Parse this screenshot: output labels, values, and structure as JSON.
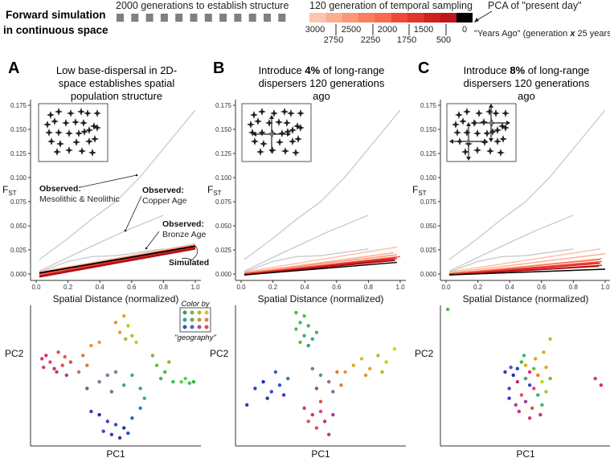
{
  "header": {
    "title_line1": "Forward simulation",
    "title_line2": "in continuous space",
    "structure_label": "2000 generations to establish structure",
    "sampling_label": "120 generation of temporal sampling",
    "pca_label": "PCA of \"present day\"",
    "years_ago_label": "\"Years Ago\" (generation ",
    "years_ago_x": "x",
    "years_ago_suffix": " 25 years)",
    "colorbar_colors": [
      "#fcc5b0",
      "#fcae91",
      "#fb9677",
      "#fb7d5e",
      "#f96a4c",
      "#ef4a36",
      "#e33529",
      "#d0211f",
      "#bd171d",
      "#000000"
    ],
    "top_ticks": [
      "3000",
      "2500",
      "2000",
      "1500",
      "0"
    ],
    "bottom_ticks": [
      "2750",
      "2250",
      "1750",
      "500"
    ]
  },
  "panels": [
    {
      "letter": "A",
      "title_pre": "Low base-dispersal in 2D-space establishes spatial population structure",
      "title_bold": "",
      "title_post": ""
    },
    {
      "letter": "B",
      "title_pre": "Introduce ",
      "title_bold": "4%",
      "title_post": " of long-range dispersers 120 generations ago"
    },
    {
      "letter": "C",
      "title_pre": "Introduce ",
      "title_bold": "8%",
      "title_post": " of long-range dispersers 120 generations ago"
    }
  ],
  "annotations": {
    "observed": "Observed:",
    "meso": "Mesolithic & Neolithic",
    "copper": "Copper Age",
    "bronze": "Bronze Age",
    "simulated": "Simulated",
    "color_by": "Color by",
    "geography": "\"geography\""
  },
  "chart_data": [
    {
      "type": "line",
      "panel": "A",
      "xlabel": "Spatial Distance (normalized)",
      "ylabel": "FST",
      "xlim": [
        0,
        1
      ],
      "ylim": [
        0,
        0.175
      ],
      "xticks": [
        "0.0",
        "0.2",
        "0.4",
        "0.6",
        "0.8",
        "1.0"
      ],
      "yticks": [
        "0.000",
        "0.025",
        "0.050",
        "0.075",
        "0.100",
        "0.125",
        "0.150",
        "0.175"
      ],
      "observed": [
        {
          "name": "Mesolithic & Neolithic",
          "x": [
            0.02,
            0.2,
            0.35,
            0.5,
            0.65,
            0.8,
            1.0
          ],
          "y": [
            0.015,
            0.037,
            0.057,
            0.075,
            0.1,
            0.13,
            0.17
          ],
          "color": "#c8c8c8"
        },
        {
          "name": "Copper Age",
          "x": [
            0.02,
            0.3,
            0.55,
            0.8
          ],
          "y": [
            0.003,
            0.025,
            0.044,
            0.061
          ],
          "color": "#c8c8c8"
        },
        {
          "name": "Bronze Age",
          "x": [
            0.02,
            0.2,
            0.35,
            0.5,
            0.8
          ],
          "y": [
            0.002,
            0.013,
            0.018,
            0.019,
            0.026
          ],
          "color": "#c8c8c8"
        }
      ],
      "simulated": [
        {
          "x": [
            0.02,
            1.0
          ],
          "y": [
            0.002,
            0.031
          ]
        },
        {
          "x": [
            0.02,
            1.0
          ],
          "y": [
            0.001,
            0.03
          ]
        },
        {
          "x": [
            0.02,
            1.0
          ],
          "y": [
            0.0,
            0.03
          ]
        },
        {
          "x": [
            0.02,
            1.0
          ],
          "y": [
            -0.001,
            0.029
          ]
        },
        {
          "x": [
            0.02,
            1.0
          ],
          "y": [
            0.0,
            0.029
          ]
        },
        {
          "x": [
            0.02,
            1.0
          ],
          "y": [
            -0.002,
            0.028
          ]
        },
        {
          "x": [
            0.02,
            1.0
          ],
          "y": [
            0.001,
            0.028
          ]
        },
        {
          "x": [
            0.02,
            1.0
          ],
          "y": [
            -0.002,
            0.027
          ]
        },
        {
          "x": [
            0.02,
            1.0
          ],
          "y": [
            -0.003,
            0.026
          ]
        },
        {
          "x": [
            0.02,
            1.0
          ],
          "y": [
            0.001,
            0.029
          ]
        }
      ]
    },
    {
      "type": "line",
      "panel": "B",
      "xlabel": "Spatial Distance (normalized)",
      "ylabel": "FST",
      "xlim": [
        0,
        1
      ],
      "ylim": [
        0,
        0.175
      ],
      "xticks": [
        "0.0",
        "0.2",
        "0.4",
        "0.6",
        "0.8",
        "1.0"
      ],
      "yticks": [
        "0.000",
        "0.025",
        "0.050",
        "0.075",
        "0.100",
        "0.125",
        "0.150",
        "0.175"
      ],
      "simulated": [
        {
          "x": [
            0.02,
            0.98
          ],
          "y": [
            0.002,
            0.028
          ]
        },
        {
          "x": [
            0.02,
            0.96
          ],
          "y": [
            0.001,
            0.022
          ]
        },
        {
          "x": [
            0.02,
            0.98
          ],
          "y": [
            0.001,
            0.02
          ]
        },
        {
          "x": [
            0.02,
            0.99
          ],
          "y": [
            0.0,
            0.018
          ]
        },
        {
          "x": [
            0.02,
            1.0
          ],
          "y": [
            0.0,
            0.018
          ]
        },
        {
          "x": [
            0.02,
            0.97
          ],
          "y": [
            -0.001,
            0.017
          ]
        },
        {
          "x": [
            0.02,
            0.98
          ],
          "y": [
            0.0,
            0.016
          ]
        },
        {
          "x": [
            0.02,
            0.96
          ],
          "y": [
            -0.001,
            0.015
          ]
        },
        {
          "x": [
            0.02,
            0.97
          ],
          "y": [
            -0.001,
            0.014
          ]
        },
        {
          "x": [
            0.02,
            0.98
          ],
          "y": [
            -0.001,
            0.012
          ]
        }
      ]
    },
    {
      "type": "line",
      "panel": "C",
      "xlabel": "Spatial Distance (normalized)",
      "ylabel": "FST",
      "xlim": [
        0,
        1
      ],
      "ylim": [
        0,
        0.175
      ],
      "xticks": [
        "0.0",
        "0.2",
        "0.4",
        "0.6",
        "0.8",
        "1.0"
      ],
      "yticks": [
        "0.000",
        "0.025",
        "0.050",
        "0.075",
        "0.100",
        "0.125",
        "0.150",
        "0.175"
      ],
      "simulated": [
        {
          "x": [
            0.02,
            0.97
          ],
          "y": [
            0.002,
            0.026
          ]
        },
        {
          "x": [
            0.02,
            1.0
          ],
          "y": [
            0.001,
            0.021
          ]
        },
        {
          "x": [
            0.02,
            0.98
          ],
          "y": [
            0.0,
            0.016
          ]
        },
        {
          "x": [
            0.02,
            0.97
          ],
          "y": [
            0.0,
            0.015
          ]
        },
        {
          "x": [
            0.02,
            0.98
          ],
          "y": [
            -0.001,
            0.013
          ]
        },
        {
          "x": [
            0.02,
            0.96
          ],
          "y": [
            0.0,
            0.012
          ]
        },
        {
          "x": [
            0.02,
            0.97
          ],
          "y": [
            -0.001,
            0.011
          ]
        },
        {
          "x": [
            0.02,
            0.98
          ],
          "y": [
            -0.001,
            0.009
          ]
        },
        {
          "x": [
            0.02,
            0.96
          ],
          "y": [
            -0.001,
            0.008
          ]
        },
        {
          "x": [
            0.02,
            1.0
          ],
          "y": [
            -0.001,
            0.005
          ]
        }
      ]
    },
    {
      "type": "scatter",
      "panel": "A",
      "xlabel": "PC1",
      "ylabel": "PC2",
      "points": [
        [
          -0.9,
          0.25,
          "#e0307a"
        ],
        [
          -0.85,
          0.3,
          "#d62d6e"
        ],
        [
          -0.8,
          0.2,
          "#e8407a"
        ],
        [
          -0.75,
          0.1,
          "#c8306a"
        ],
        [
          -0.7,
          0.35,
          "#f04060"
        ],
        [
          -0.72,
          0.05,
          "#b04080"
        ],
        [
          -0.65,
          0.15,
          "#e05050"
        ],
        [
          -0.6,
          0.0,
          "#a04090"
        ],
        [
          -0.55,
          0.2,
          "#d05a40"
        ],
        [
          -0.88,
          0.12,
          "#d03a8a"
        ],
        [
          -0.62,
          0.28,
          "#e85a4a"
        ],
        [
          -0.4,
          0.3,
          "#e87830"
        ],
        [
          -0.3,
          0.45,
          "#f09030"
        ],
        [
          -0.2,
          0.5,
          "#e8a020"
        ],
        [
          -0.35,
          0.15,
          "#d08040"
        ],
        [
          -0.45,
          0.05,
          "#c87060"
        ],
        [
          0.1,
          0.9,
          "#d0b020"
        ],
        [
          0.15,
          0.75,
          "#c8c020"
        ],
        [
          0.05,
          0.65,
          "#e0a030"
        ],
        [
          0.2,
          0.6,
          "#b0c030"
        ],
        [
          0.25,
          0.5,
          "#c0d020"
        ],
        [
          0.12,
          0.55,
          "#a8b838"
        ],
        [
          0.0,
          0.8,
          "#e09a28"
        ],
        [
          0.5,
          0.15,
          "#60c030"
        ],
        [
          0.6,
          0.05,
          "#40c040"
        ],
        [
          0.7,
          -0.1,
          "#30c060"
        ],
        [
          0.8,
          -0.1,
          "#50d050"
        ],
        [
          0.9,
          -0.12,
          "#40c050"
        ],
        [
          0.95,
          -0.1,
          "#30b040"
        ],
        [
          0.55,
          -0.05,
          "#50b060"
        ],
        [
          0.65,
          0.2,
          "#80c020"
        ],
        [
          0.45,
          0.3,
          "#90b030"
        ],
        [
          0.85,
          -0.05,
          "#60d040"
        ],
        [
          -0.1,
          0.0,
          "#708090"
        ],
        [
          0.0,
          0.05,
          "#609080"
        ],
        [
          -0.2,
          -0.1,
          "#8a7090"
        ],
        [
          0.1,
          -0.15,
          "#40a090"
        ],
        [
          0.2,
          0.0,
          "#50a080"
        ],
        [
          0.3,
          -0.2,
          "#30a0a0"
        ],
        [
          -0.05,
          -0.25,
          "#7070a0"
        ],
        [
          0.35,
          -0.35,
          "#40a0b0"
        ],
        [
          -0.35,
          -0.2,
          "#905090"
        ],
        [
          -0.3,
          -0.55,
          "#3040c0"
        ],
        [
          -0.2,
          -0.6,
          "#2030b0"
        ],
        [
          -0.1,
          -0.7,
          "#4040d0"
        ],
        [
          0.0,
          -0.75,
          "#3050c0"
        ],
        [
          0.1,
          -0.8,
          "#2040a0"
        ],
        [
          -0.05,
          -0.9,
          "#5030c0"
        ],
        [
          0.05,
          -0.95,
          "#4030b0"
        ],
        [
          0.2,
          -0.65,
          "#3060c0"
        ],
        [
          0.3,
          -0.5,
          "#3080b0"
        ],
        [
          -0.15,
          -0.85,
          "#5040b0"
        ],
        [
          0.15,
          -0.88,
          "#2050c0"
        ]
      ]
    },
    {
      "type": "scatter",
      "panel": "B",
      "xlabel": "PC1",
      "ylabel": "PC2",
      "points": [
        [
          -0.3,
          0.95,
          "#40c040"
        ],
        [
          -0.2,
          0.9,
          "#50c050"
        ],
        [
          -0.25,
          0.8,
          "#30c060"
        ],
        [
          -0.15,
          0.75,
          "#40b070"
        ],
        [
          -0.3,
          0.7,
          "#50c040"
        ],
        [
          -0.2,
          0.6,
          "#30b080"
        ],
        [
          -0.1,
          0.55,
          "#40a090"
        ],
        [
          -0.25,
          0.5,
          "#60c030"
        ],
        [
          -0.15,
          0.45,
          "#30a0a0"
        ],
        [
          -0.05,
          0.65,
          "#50b060"
        ],
        [
          -0.8,
          -0.2,
          "#3040c0"
        ],
        [
          -0.7,
          -0.1,
          "#2030b0"
        ],
        [
          -0.6,
          -0.25,
          "#4040d0"
        ],
        [
          -0.5,
          -0.15,
          "#3050c0"
        ],
        [
          -0.65,
          -0.35,
          "#2040a0"
        ],
        [
          -0.45,
          -0.3,
          "#5030c0"
        ],
        [
          -0.9,
          -0.45,
          "#4030b0"
        ],
        [
          -0.55,
          0.05,
          "#3060c0"
        ],
        [
          -0.4,
          -0.05,
          "#3080b0"
        ],
        [
          0.4,
          0.15,
          "#d0b020"
        ],
        [
          0.5,
          0.25,
          "#c8c020"
        ],
        [
          0.6,
          0.1,
          "#e0a030"
        ],
        [
          0.7,
          0.3,
          "#b0c030"
        ],
        [
          0.8,
          0.2,
          "#c0d020"
        ],
        [
          0.9,
          0.4,
          "#d8d020"
        ],
        [
          0.55,
          0.0,
          "#e09030"
        ],
        [
          0.3,
          0.05,
          "#c8a040"
        ],
        [
          0.75,
          0.05,
          "#a8c028"
        ],
        [
          -0.2,
          -0.5,
          "#e0307a"
        ],
        [
          -0.1,
          -0.6,
          "#d62d6e"
        ],
        [
          0.0,
          -0.55,
          "#e8407a"
        ],
        [
          0.05,
          -0.7,
          "#c8306a"
        ],
        [
          -0.05,
          -0.8,
          "#f04060"
        ],
        [
          0.1,
          -0.9,
          "#b04080"
        ],
        [
          -0.15,
          -0.7,
          "#e05050"
        ],
        [
          0.15,
          -0.6,
          "#a04090"
        ],
        [
          0.0,
          -0.4,
          "#d05a40"
        ],
        [
          -0.1,
          0.1,
          "#708090"
        ],
        [
          0.0,
          0.0,
          "#609080"
        ],
        [
          0.1,
          -0.1,
          "#8a7090"
        ],
        [
          0.2,
          0.05,
          "#e87830"
        ],
        [
          0.15,
          -0.25,
          "#7070a0"
        ],
        [
          -0.05,
          -0.2,
          "#905090"
        ],
        [
          0.25,
          -0.15,
          "#d08040"
        ]
      ]
    },
    {
      "type": "scatter",
      "panel": "C",
      "xlabel": "PC1",
      "ylabel": "PC2",
      "points": [
        [
          -0.95,
          1.0,
          "#40c040"
        ],
        [
          0.85,
          -0.05,
          "#e0307a"
        ],
        [
          0.92,
          -0.15,
          "#d62d6e"
        ],
        [
          0.3,
          0.55,
          "#c8c020"
        ],
        [
          0.22,
          0.35,
          "#d0b020"
        ],
        [
          -0.1,
          0.1,
          "#3040c0"
        ],
        [
          -0.05,
          0.2,
          "#40c040"
        ],
        [
          0.0,
          0.15,
          "#d0b020"
        ],
        [
          0.05,
          0.05,
          "#e0307a"
        ],
        [
          0.1,
          0.1,
          "#60c030"
        ],
        [
          0.15,
          0.0,
          "#e87830"
        ],
        [
          -0.15,
          0.0,
          "#2030b0"
        ],
        [
          -0.1,
          -0.1,
          "#c8306a"
        ],
        [
          0.0,
          -0.05,
          "#609080"
        ],
        [
          0.05,
          -0.15,
          "#4040d0"
        ],
        [
          0.1,
          -0.2,
          "#f04060"
        ],
        [
          0.2,
          -0.1,
          "#c0d020"
        ],
        [
          -0.2,
          -0.2,
          "#3050c0"
        ],
        [
          -0.05,
          -0.3,
          "#e05050"
        ],
        [
          0.15,
          -0.3,
          "#30b080"
        ],
        [
          0.0,
          -0.4,
          "#a04090"
        ],
        [
          -0.12,
          -0.45,
          "#b04080"
        ],
        [
          0.08,
          -0.5,
          "#d05a40"
        ],
        [
          0.2,
          -0.45,
          "#50b060"
        ],
        [
          -0.2,
          -0.35,
          "#5030c0"
        ],
        [
          0.25,
          -0.25,
          "#b0c030"
        ],
        [
          0.05,
          -0.65,
          "#e0307a"
        ],
        [
          -0.02,
          0.3,
          "#40b070"
        ],
        [
          0.12,
          0.25,
          "#e0a030"
        ],
        [
          -0.18,
          0.12,
          "#3060c0"
        ],
        [
          0.25,
          0.12,
          "#e8a020"
        ],
        [
          -0.08,
          -0.55,
          "#d62d6e"
        ],
        [
          0.18,
          -0.6,
          "#c8306a"
        ],
        [
          0.3,
          -0.05,
          "#90b030"
        ],
        [
          -0.25,
          0.05,
          "#4030b0"
        ]
      ]
    }
  ]
}
